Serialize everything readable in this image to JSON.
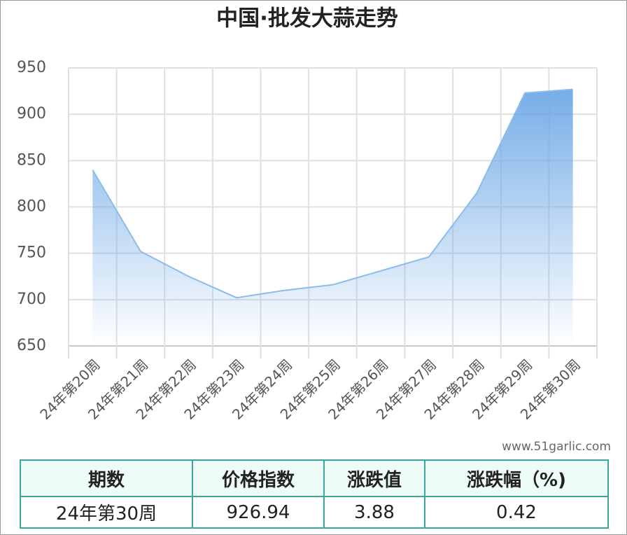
{
  "chart_data": {
    "type": "area",
    "title": "中国·批发大蒜走势",
    "categories": [
      "24年第20周",
      "24年第21周",
      "24年第22周",
      "24年第23周",
      "24年第24周",
      "24年第25周",
      "24年第26周",
      "24年第27周",
      "24年第28周",
      "24年第29周",
      "24年第30周"
    ],
    "values": [
      840,
      752,
      725,
      702,
      710,
      716,
      731,
      746,
      815,
      923,
      926.94
    ],
    "color": "#8bbcec",
    "ylim": [
      650,
      950
    ],
    "yticks": [
      650,
      700,
      750,
      800,
      850,
      900,
      950
    ],
    "grid": true
  },
  "watermark": "www.51garlic.com",
  "table": {
    "header": [
      "期数",
      "价格指数",
      "涨跌值",
      "涨跌幅（%)"
    ],
    "rows": [
      [
        "24年第30周",
        "926.94",
        "3.88",
        "0.42"
      ]
    ]
  }
}
